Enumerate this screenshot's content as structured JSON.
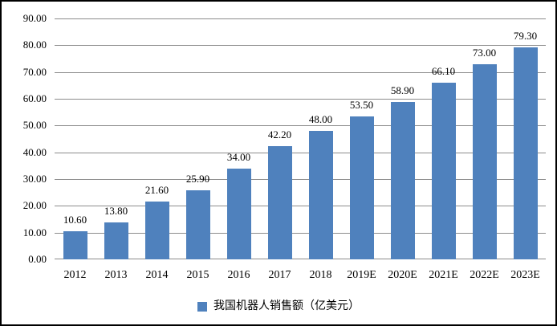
{
  "chart_data": {
    "type": "bar",
    "title": "",
    "xlabel": "",
    "ylabel": "",
    "categories": [
      "2012",
      "2013",
      "2014",
      "2015",
      "2016",
      "2017",
      "2018",
      "2019E",
      "2020E",
      "2021E",
      "2022E",
      "2023E"
    ],
    "values": [
      10.6,
      13.8,
      21.6,
      25.9,
      34.0,
      42.2,
      48.0,
      53.5,
      58.9,
      66.1,
      73.0,
      79.3
    ],
    "value_labels": [
      "10.60",
      "13.80",
      "21.60",
      "25.90",
      "34.00",
      "42.20",
      "48.00",
      "53.50",
      "58.90",
      "66.10",
      "73.00",
      "79.30"
    ],
    "ylim": [
      0,
      90
    ],
    "y_tick_step": 10,
    "y_tick_labels": [
      "0.00",
      "10.00",
      "20.00",
      "30.00",
      "40.00",
      "50.00",
      "60.00",
      "70.00",
      "80.00",
      "90.00"
    ],
    "grid": "horizontal",
    "legend": "我国机器人销售额（亿美元）",
    "legend_position": "bottom",
    "bar_color": "#4F81BD",
    "gridline_color": "#8C8C8C",
    "text_color": "#000000",
    "frame_border_color": "#000000"
  }
}
